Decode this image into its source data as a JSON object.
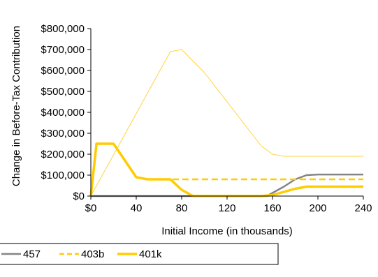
{
  "chart_data": {
    "type": "line",
    "title": "",
    "xlabel": "Initial Income (in thousands)",
    "ylabel": "Change in Before-Tax Contribution",
    "xlim": [
      0,
      240
    ],
    "ylim": [
      0,
      800000
    ],
    "x_ticks": [
      0,
      40,
      80,
      120,
      160,
      200,
      240
    ],
    "x_tick_labels": [
      "$0",
      "40",
      "80",
      "120",
      "160",
      "200",
      "240"
    ],
    "y_ticks": [
      0,
      100000,
      200000,
      300000,
      400000,
      500000,
      600000,
      700000,
      800000
    ],
    "y_tick_labels": [
      "$0",
      "$100,000",
      "$200,000",
      "$300,000",
      "$400,000",
      "$500,000",
      "$600,000",
      "$700,000",
      "$800,000"
    ],
    "grid": false,
    "legend_position": "bottom-left",
    "series": [
      {
        "name": "",
        "style": "thin-solid",
        "color": "#ffd33f",
        "x": [
          0,
          70,
          80,
          100,
          150,
          160,
          170,
          240
        ],
        "y": [
          0,
          690000,
          700000,
          590000,
          240000,
          200000,
          190000,
          190000
        ]
      },
      {
        "name": "457",
        "style": "solid",
        "color": "#858585",
        "x": [
          0,
          155,
          160,
          170,
          180,
          190,
          200,
          240
        ],
        "y": [
          0,
          0,
          15000,
          45000,
          80000,
          100000,
          103000,
          103000
        ]
      },
      {
        "name": "403b",
        "style": "dashed",
        "color": "#ffcc00",
        "x": [
          0,
          5,
          10,
          20,
          30,
          40,
          50,
          70,
          80,
          240
        ],
        "y": [
          0,
          250000,
          250000,
          250000,
          170000,
          90000,
          80000,
          80000,
          80000,
          80000
        ]
      },
      {
        "name": "401k",
        "style": "thick-solid",
        "color": "#ffcc00",
        "x": [
          0,
          5,
          10,
          20,
          30,
          40,
          50,
          70,
          80,
          90,
          150,
          160,
          170,
          180,
          190,
          240
        ],
        "y": [
          0,
          250000,
          250000,
          250000,
          170000,
          90000,
          80000,
          80000,
          30000,
          0,
          0,
          5000,
          20000,
          35000,
          45000,
          45000
        ]
      }
    ]
  }
}
